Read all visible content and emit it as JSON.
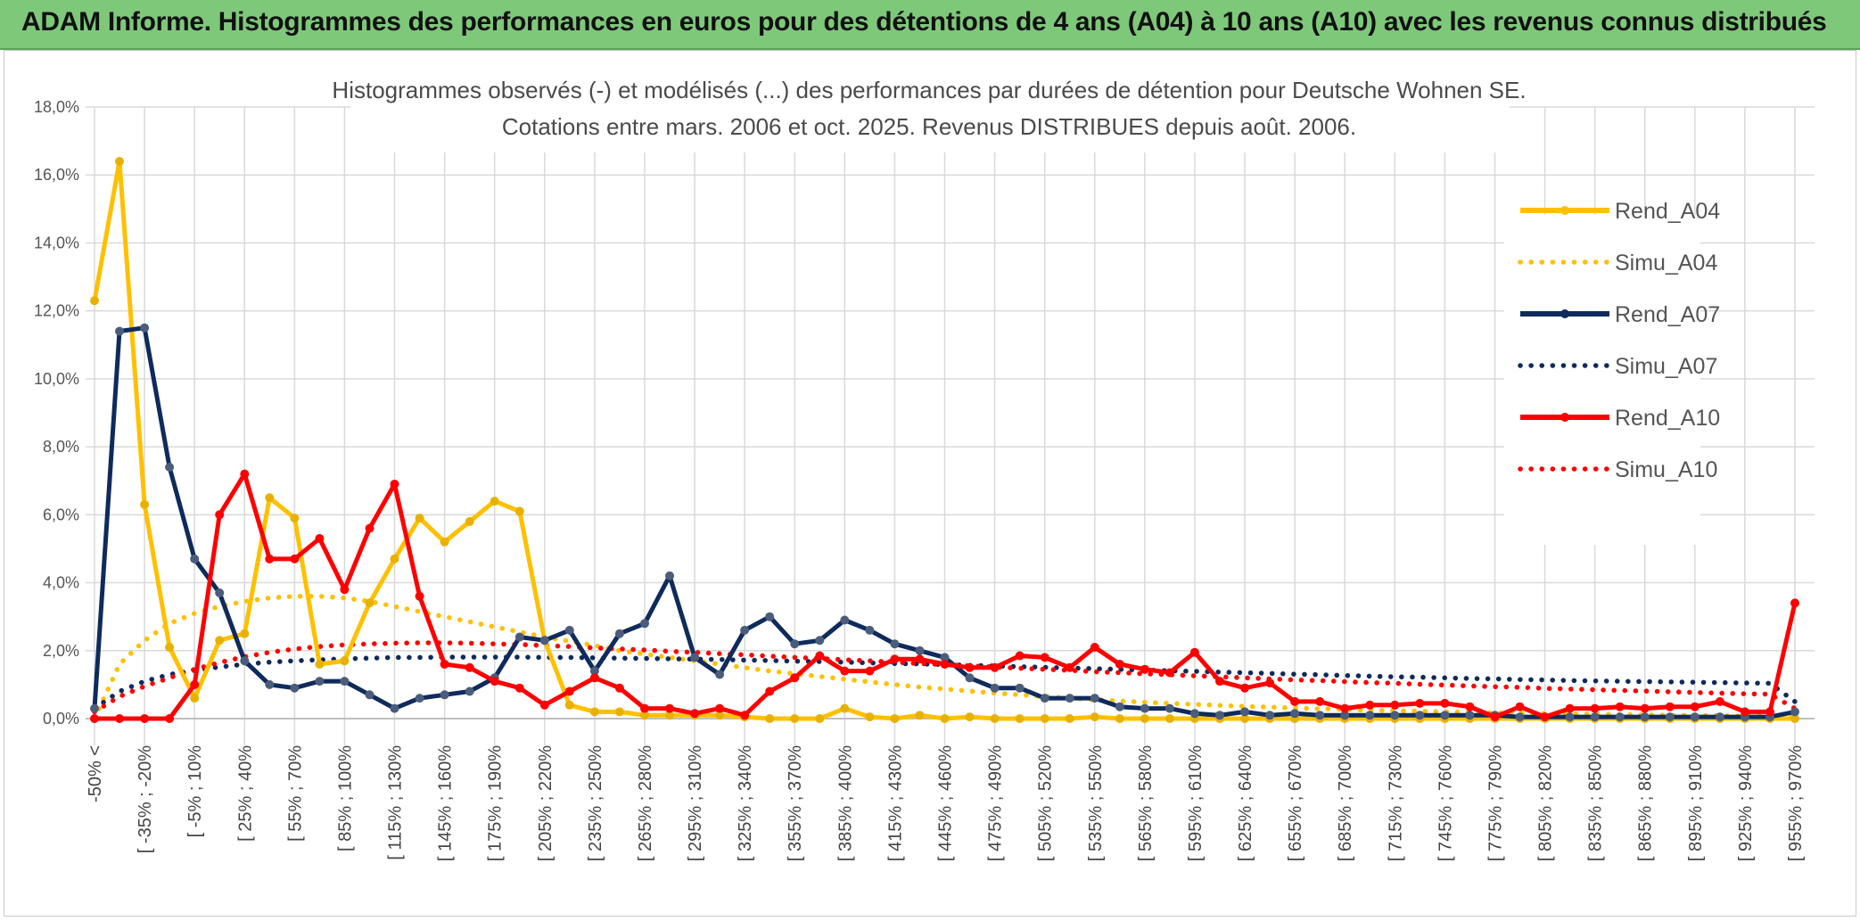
{
  "banner": {
    "title": "ADAM Informe. Histogrammes des performances en euros pour des détentions de 4 ans (A04) à 10 ans (A10) avec les revenus connus distribués"
  },
  "chart_data": {
    "type": "line",
    "title": "Histogrammes observés (-) et modélisés (...) des performances par durées de détention pour Deutsche Wohnen SE.",
    "subtitle": "Cotations entre mars. 2006 et oct. 2025. Revenus DISTRIBUES depuis août. 2006.",
    "xlabel": "",
    "ylabel": "",
    "ylim": [
      0,
      18
    ],
    "y_ticks": [
      "0,0%",
      "2,0%",
      "4,0%",
      "6,0%",
      "8,0%",
      "10,0%",
      "12,0%",
      "14,0%",
      "16,0%",
      "18,0%"
    ],
    "x_tick_labels": [
      "-50% <",
      "[ -35% ; -20%",
      "[ -5% ; 10%",
      "[ 25% ; 40%",
      "[ 55% ; 70%",
      "[ 85% ; 100%",
      "[ 115% ; 130%",
      "[ 145% ; 160%",
      "[ 175% ; 190%",
      "[ 205% ; 220%",
      "[ 235% ; 250%",
      "[ 265% ; 280%",
      "[ 295% ; 310%",
      "[ 325% ; 340%",
      "[ 355% ; 370%",
      "[ 385% ; 400%",
      "[ 415% ; 430%",
      "[ 445% ; 460%",
      "[ 475% ; 490%",
      "[ 505% ; 520%",
      "[ 535% ; 550%",
      "[ 565% ; 580%",
      "[ 595% ; 610%",
      "[ 625% ; 640%",
      "[ 655% ; 670%",
      "[ 685% ; 700%",
      "[ 715% ; 730%",
      "[ 745% ; 760%",
      "[ 775% ; 790%",
      "[ 805% ; 820%",
      "[ 835% ; 850%",
      "[ 865% ; 880%",
      "[ 895% ; 910%",
      "[ 925% ; 940%",
      "[ 955% ; 970%"
    ],
    "legend_position": "right",
    "n_points": 69,
    "series": [
      {
        "name": "Rend_A04",
        "color": "#FFC000",
        "style": "solid",
        "values": [
          12.3,
          16.4,
          6.3,
          2.1,
          0.6,
          2.3,
          2.5,
          6.5,
          5.9,
          1.6,
          1.7,
          3.4,
          4.7,
          5.9,
          5.2,
          5.8,
          6.4,
          6.1,
          2.3,
          0.4,
          0.2,
          0.2,
          0.1,
          0.1,
          0.1,
          0.1,
          0.05,
          0.0,
          0.0,
          0.0,
          0.3,
          0.05,
          0.0,
          0.1,
          0.0,
          0.05,
          0.0,
          0.0,
          0.0,
          0.0,
          0.05,
          0.0,
          0.0,
          0.0,
          0.0,
          0.0,
          0.0,
          0.0,
          0.0,
          0.0,
          0.0,
          0.0,
          0.0,
          0.0,
          0.0,
          0.0,
          0.0,
          0.0,
          0.0,
          0.0,
          0.0,
          0.0,
          0.0,
          0.0,
          0.0,
          0.0,
          0.0,
          0.0,
          0.0
        ]
      },
      {
        "name": "Simu_A04",
        "color": "#FFC000",
        "style": "dotted",
        "values": [
          0.0,
          1.6,
          2.3,
          2.8,
          3.1,
          3.3,
          3.45,
          3.55,
          3.6,
          3.6,
          3.55,
          3.45,
          3.3,
          3.15,
          3.0,
          2.85,
          2.7,
          2.55,
          2.4,
          2.28,
          2.15,
          2.0,
          1.9,
          1.8,
          1.7,
          1.6,
          1.5,
          1.4,
          1.32,
          1.24,
          1.16,
          1.08,
          1.0,
          0.93,
          0.87,
          0.81,
          0.75,
          0.7,
          0.65,
          0.6,
          0.56,
          0.52,
          0.48,
          0.45,
          0.42,
          0.39,
          0.36,
          0.34,
          0.31,
          0.29,
          0.27,
          0.25,
          0.23,
          0.22,
          0.2,
          0.19,
          0.17,
          0.16,
          0.15,
          0.14,
          0.13,
          0.12,
          0.11,
          0.1,
          0.1,
          0.09,
          0.08,
          0.08,
          0.07
        ]
      },
      {
        "name": "Rend_A07",
        "color": "#0F2A5C",
        "style": "solid",
        "values": [
          0.3,
          11.4,
          11.5,
          7.4,
          4.7,
          3.7,
          1.7,
          1.0,
          0.9,
          1.1,
          1.1,
          0.7,
          0.3,
          0.6,
          0.7,
          0.8,
          1.2,
          2.4,
          2.3,
          2.6,
          1.4,
          2.5,
          2.8,
          4.2,
          1.8,
          1.3,
          2.6,
          3.0,
          2.2,
          2.3,
          2.9,
          2.6,
          2.2,
          2.0,
          1.8,
          1.2,
          0.9,
          0.9,
          0.6,
          0.6,
          0.6,
          0.35,
          0.3,
          0.3,
          0.15,
          0.1,
          0.2,
          0.1,
          0.15,
          0.1,
          0.1,
          0.1,
          0.1,
          0.1,
          0.1,
          0.1,
          0.1,
          0.05,
          0.05,
          0.05,
          0.05,
          0.05,
          0.05,
          0.05,
          0.05,
          0.05,
          0.05,
          0.05,
          0.2
        ]
      },
      {
        "name": "Simu_A07",
        "color": "#0F2A5C",
        "style": "dotted",
        "values": [
          0.3,
          0.8,
          1.1,
          1.3,
          1.42,
          1.52,
          1.6,
          1.66,
          1.7,
          1.73,
          1.76,
          1.78,
          1.8,
          1.8,
          1.81,
          1.81,
          1.81,
          1.81,
          1.8,
          1.8,
          1.79,
          1.78,
          1.77,
          1.76,
          1.75,
          1.74,
          1.72,
          1.71,
          1.69,
          1.68,
          1.66,
          1.64,
          1.62,
          1.61,
          1.59,
          1.57,
          1.55,
          1.53,
          1.51,
          1.49,
          1.47,
          1.45,
          1.43,
          1.41,
          1.39,
          1.37,
          1.35,
          1.33,
          1.31,
          1.29,
          1.27,
          1.25,
          1.23,
          1.22,
          1.2,
          1.18,
          1.17,
          1.15,
          1.14,
          1.12,
          1.11,
          1.1,
          1.09,
          1.08,
          1.07,
          1.06,
          1.05,
          1.04,
          0.5
        ]
      },
      {
        "name": "Rend_A10",
        "color": "#FF0000",
        "style": "solid",
        "values": [
          0.0,
          0.0,
          0.0,
          0.0,
          1.0,
          6.0,
          7.2,
          4.7,
          4.7,
          5.3,
          3.8,
          5.6,
          6.9,
          3.6,
          1.6,
          1.5,
          1.1,
          0.9,
          0.4,
          0.8,
          1.2,
          0.9,
          0.3,
          0.3,
          0.15,
          0.3,
          0.1,
          0.8,
          1.2,
          1.85,
          1.4,
          1.4,
          1.75,
          1.75,
          1.6,
          1.5,
          1.5,
          1.85,
          1.8,
          1.5,
          2.1,
          1.6,
          1.45,
          1.35,
          1.95,
          1.1,
          0.9,
          1.05,
          0.5,
          0.5,
          0.3,
          0.4,
          0.4,
          0.45,
          0.45,
          0.35,
          0.05,
          0.35,
          0.05,
          0.3,
          0.3,
          0.35,
          0.3,
          0.35,
          0.35,
          0.5,
          0.2,
          0.2,
          3.4
        ]
      },
      {
        "name": "Simu_A10",
        "color": "#FF0000",
        "style": "dotted",
        "values": [
          0.2,
          0.65,
          0.95,
          1.2,
          1.45,
          1.65,
          1.82,
          1.95,
          2.05,
          2.12,
          2.17,
          2.2,
          2.22,
          2.23,
          2.23,
          2.22,
          2.2,
          2.18,
          2.15,
          2.12,
          2.08,
          2.05,
          2.02,
          1.98,
          1.95,
          1.91,
          1.88,
          1.84,
          1.8,
          1.77,
          1.73,
          1.7,
          1.66,
          1.62,
          1.59,
          1.55,
          1.52,
          1.48,
          1.45,
          1.42,
          1.38,
          1.35,
          1.32,
          1.29,
          1.26,
          1.23,
          1.2,
          1.17,
          1.14,
          1.12,
          1.09,
          1.06,
          1.04,
          1.01,
          0.99,
          0.96,
          0.94,
          0.92,
          0.89,
          0.87,
          0.85,
          0.83,
          0.81,
          0.79,
          0.77,
          0.75,
          0.73,
          0.72,
          0.3
        ]
      }
    ]
  }
}
